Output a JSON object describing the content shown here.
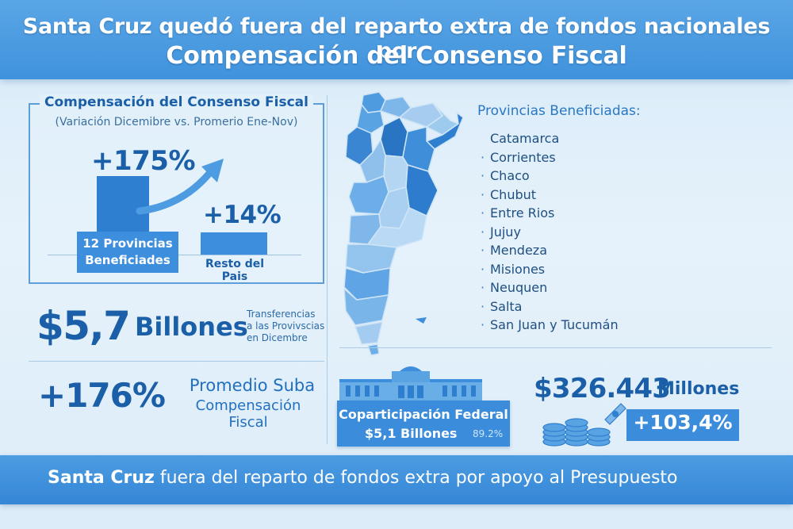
{
  "header": {
    "line1": "Santa Cruz quedó fuera del reparto extra de fondos nacionales por",
    "line2": "Compensación del Consenso Fiscal"
  },
  "comparison": {
    "title": "Compensación del Consenso Fiscal",
    "subtitle": "(Variación Dicemibre vs. Promerio Ene-Nov)",
    "beneficiadas_pct": "+175%",
    "beneficiadas_label_1": "12 Provincias",
    "beneficiadas_label_2": "Beneficiades",
    "resto_pct": "+14%",
    "resto_label": "Resto del Pais",
    "values": {
      "beneficiadas": 175,
      "resto": 14
    }
  },
  "transfer": {
    "amount": "$5,7",
    "unit": "Billones",
    "desc_1": "Transferencias",
    "desc_2": "a las Provivscias",
    "desc_3": "en Dicembre"
  },
  "average": {
    "value": "+176%",
    "label_1": "Promedio Suba",
    "label_2": "Compensación Fiscal"
  },
  "provinces": {
    "title": "Provincias Beneficiadas:",
    "items": [
      {
        "dot": "",
        "name": "Catamarca"
      },
      {
        "dot": "·",
        "name": "Corrientes"
      },
      {
        "dot": "·",
        "name": "Chaco"
      },
      {
        "dot": "·",
        "name": "Chubut"
      },
      {
        "dot": "·",
        "name": "Entre Rios"
      },
      {
        "dot": "·",
        "name": "Jujuy"
      },
      {
        "dot": "·",
        "name": "Mendeza"
      },
      {
        "dot": "·",
        "name": "Misiones"
      },
      {
        "dot": "·",
        "name": "Neuquen"
      },
      {
        "dot": "·",
        "name": "Salta"
      },
      {
        "dot": "·",
        "name": "San Juan y Tucumán"
      }
    ]
  },
  "coparticipacion": {
    "label": "Coparticipación Federal",
    "amount": "$5,1 Billones",
    "pct": "89.2%"
  },
  "millones": {
    "amount": "$326.443",
    "unit": "Millones",
    "pct": "+103,4%"
  },
  "footer": {
    "bold": "Santa Cruz",
    "rest": " fuera del reparto de fondos extra por apoyo al Presupuesto"
  },
  "colors": {
    "primary": "#1a5fa8",
    "accent": "#3b8ddc",
    "background": "#e2f0fa"
  }
}
